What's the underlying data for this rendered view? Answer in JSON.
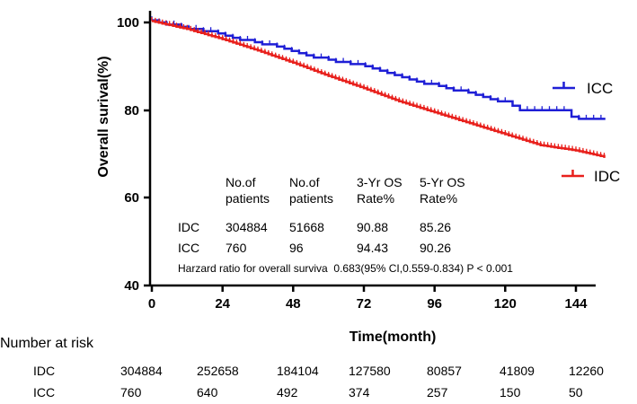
{
  "chart_data": {
    "type": "line",
    "subtype": "kaplan-meier",
    "xlabel": "Time(month)",
    "ylabel": "Overall surival(%)",
    "xlim": [
      0,
      156
    ],
    "ylim": [
      40,
      102
    ],
    "xticks": [
      "0",
      "24",
      "48",
      "72",
      "96",
      "120",
      "144"
    ],
    "yticks": [
      "40",
      "60",
      "80",
      "100"
    ],
    "series": [
      {
        "name": "ICC",
        "color": "#1f1fd6",
        "x": [
          0,
          4,
          8,
          10,
          14,
          18,
          22,
          26,
          30,
          34,
          38,
          42,
          46,
          48,
          52,
          56,
          60,
          64,
          68,
          72,
          76,
          80,
          84,
          88,
          92,
          96,
          100,
          104,
          108,
          112,
          116,
          120,
          124,
          128,
          132,
          136,
          140,
          144,
          148,
          154
        ],
        "y": [
          100.5,
          99.8,
          99.3,
          99,
          98.5,
          98,
          97.5,
          96.8,
          96.2,
          95.6,
          95,
          94.5,
          94,
          93.6,
          92.8,
          92,
          91.5,
          91,
          90.5,
          90,
          89.2,
          88.5,
          87.8,
          87,
          86.3,
          85.6,
          85,
          84.5,
          84,
          83.2,
          82.5,
          81.8,
          80.2,
          79.8,
          79.8,
          79.8,
          79.8,
          77.8,
          77.8,
          77.8
        ]
      },
      {
        "name": "IDC",
        "color": "#e8201c",
        "x": [
          0,
          12,
          24,
          36,
          48,
          60,
          72,
          84,
          96,
          108,
          120,
          132,
          144,
          154
        ],
        "y": [
          100.3,
          98.5,
          96.2,
          93.6,
          90.8,
          87.8,
          85,
          82,
          79.5,
          77,
          74.5,
          72,
          70.8,
          69.3
        ]
      }
    ],
    "legend": [
      {
        "label": "ICC",
        "color": "#1f1fd6",
        "position": "right"
      },
      {
        "label": "IDC",
        "color": "#e8201c",
        "position": "right"
      }
    ],
    "inset_table": {
      "headers": [
        [
          "",
          "No.of",
          "No.of",
          "3-Yr OS",
          "5-Yr OS"
        ],
        [
          "",
          "patients",
          "patients",
          "Rate%",
          "Rate%"
        ]
      ],
      "rows": [
        [
          "IDC",
          "304884",
          "51668",
          "90.88",
          "85.26"
        ],
        [
          "ICC",
          "760",
          "96",
          "94.43",
          "90.26"
        ]
      ],
      "hazard_ratio": "Harzard ratio for overall surviva  0.683(95% CI,0.559-0.834) P < 0.001"
    },
    "risk_table": {
      "title": "Number at risk",
      "rows": [
        {
          "label": "IDC",
          "values": [
            "304884",
            "252658",
            "184104",
            "127580",
            "80857",
            "41809",
            "12260"
          ]
        },
        {
          "label": "ICC",
          "values": [
            "760",
            "640",
            "492",
            "374",
            "257",
            "150",
            "50"
          ]
        }
      ]
    }
  }
}
